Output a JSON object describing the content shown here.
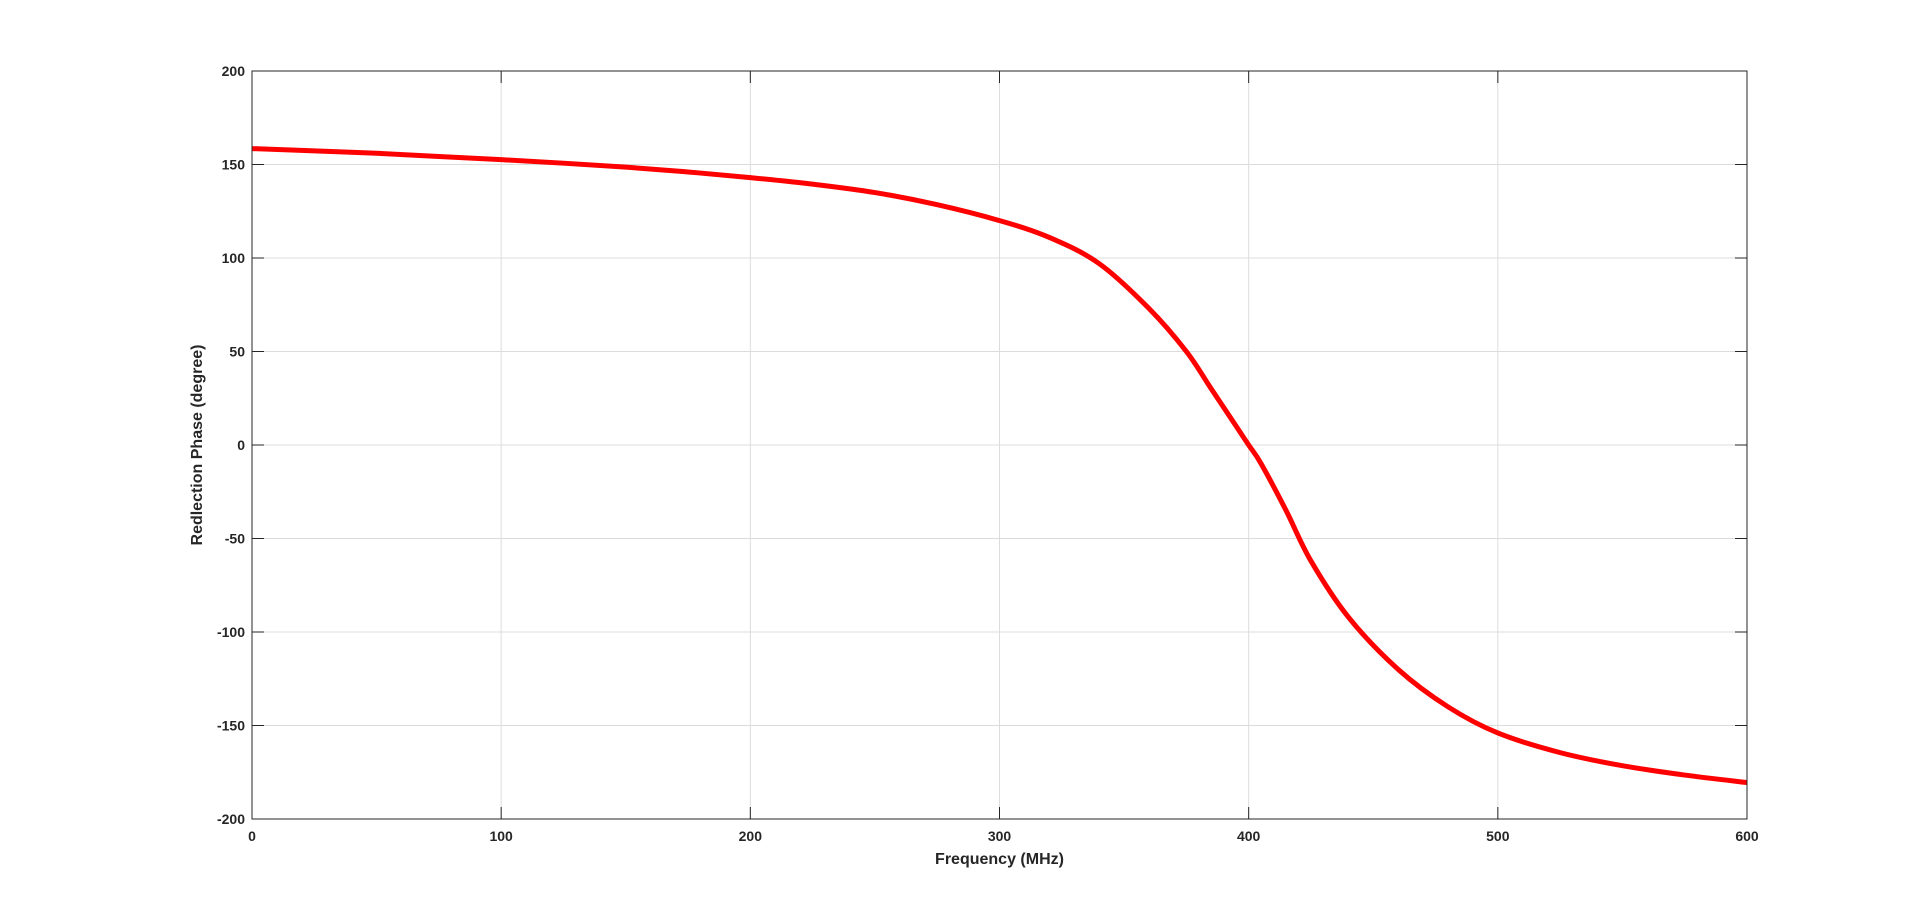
{
  "chart_data": {
    "type": "line",
    "title": "",
    "xlabel": "Frequency (MHz)",
    "ylabel": "Redlection Phase (degree)",
    "xlim": [
      0,
      600
    ],
    "ylim": [
      -200,
      200
    ],
    "xticks": [
      0,
      100,
      200,
      300,
      400,
      500,
      600
    ],
    "yticks": [
      200,
      150,
      100,
      50,
      0,
      -50,
      -100,
      -150,
      -200
    ],
    "xtick_labels": [
      "0",
      "100",
      "200",
      "300",
      "400",
      "500",
      "600"
    ],
    "ytick_labels": [
      "200",
      "150",
      "100",
      "50",
      "0",
      "-50",
      "-100",
      "-150",
      "-200"
    ],
    "grid": true,
    "legend": "none",
    "series": [
      {
        "color": "#ff0000",
        "x": [
          0,
          25,
          50,
          75,
          100,
          125,
          150,
          175,
          200,
          225,
          250,
          275,
          300,
          320,
          340,
          360,
          375,
          385,
          395,
          400,
          405,
          415,
          425,
          440,
          460,
          480,
          500,
          525,
          550,
          575,
          600
        ],
        "y": [
          158.5,
          157.3,
          156,
          154.3,
          152.6,
          150.7,
          148.6,
          146,
          143,
          139.5,
          135,
          128.5,
          120,
          111,
          97,
          73,
          50,
          30,
          10,
          0,
          -10,
          -35,
          -62,
          -92,
          -120,
          -140,
          -154,
          -164.5,
          -171.5,
          -176.5,
          -180.5
        ]
      }
    ]
  }
}
